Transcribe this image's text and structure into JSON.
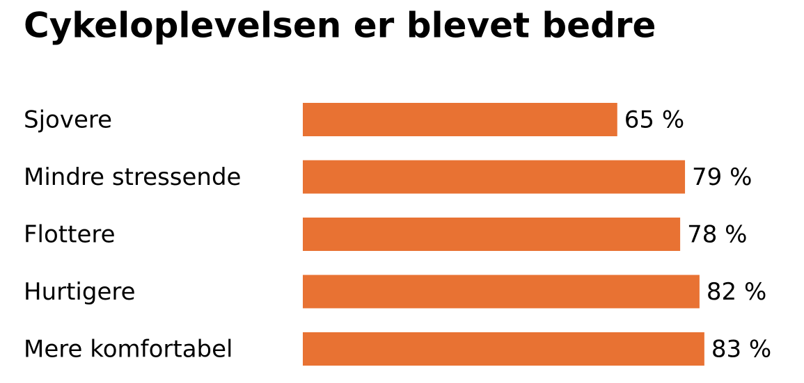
{
  "chart_data": {
    "type": "bar",
    "orientation": "horizontal",
    "title": "Cykeloplevelsen er blevet bedre",
    "categories": [
      "Sjovere",
      "Mindre stressende",
      "Flottere",
      "Hurtigere",
      "Mere komfortabel"
    ],
    "values": [
      65,
      79,
      78,
      82,
      83
    ],
    "value_labels": [
      "65 %",
      "79 %",
      "78 %",
      "82 %",
      "83 %"
    ],
    "color": "#e87233"
  }
}
